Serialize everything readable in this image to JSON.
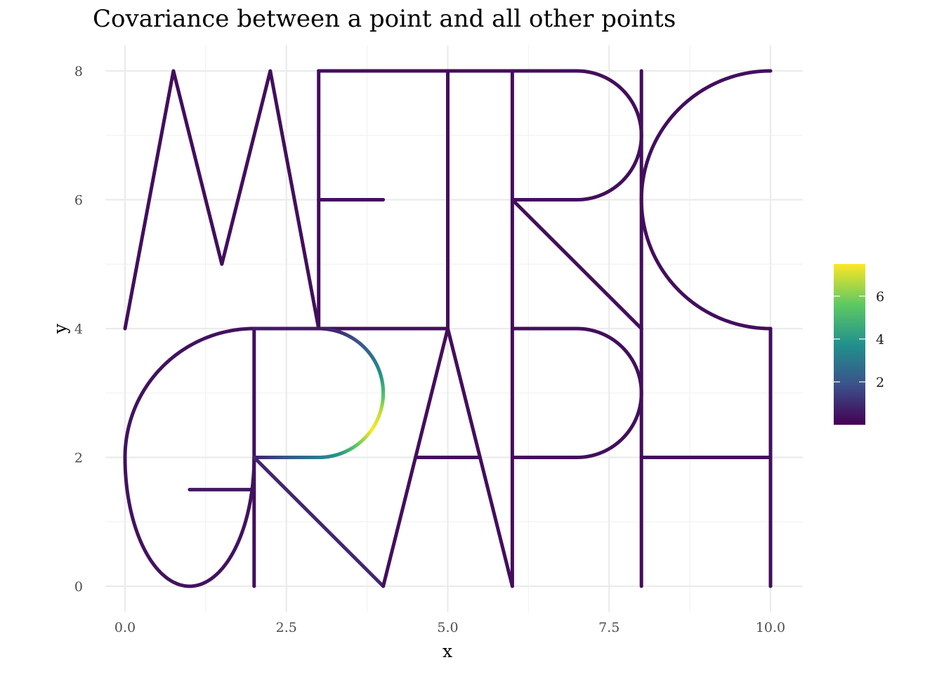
{
  "chart_data": {
    "type": "line",
    "title": "Covariance between a point and all other points",
    "xlabel": "x",
    "ylabel": "y",
    "xlim": [
      -0.3,
      10.5
    ],
    "ylim": [
      -0.4,
      8.4
    ],
    "x_ticks": [
      0,
      2.5,
      5,
      7.5,
      10
    ],
    "x_tick_labels": [
      "0.0",
      "2.5",
      "5.0",
      "7.5",
      "10.0"
    ],
    "y_ticks": [
      0,
      2,
      4,
      6,
      8
    ],
    "y_tick_labels": [
      "0",
      "2",
      "4",
      "6",
      "8"
    ],
    "grid": true,
    "legend": {
      "placement": "right",
      "type": "colorbar",
      "range": [
        0,
        7.5
      ],
      "ticks": [
        2,
        4,
        6
      ],
      "tick_labels": [
        "2",
        "4",
        "6"
      ],
      "colormap": [
        "#440154",
        "#3b528b",
        "#21918c",
        "#5ec962",
        "#fde725"
      ]
    },
    "series": [
      {
        "kind": "polyline",
        "points": [
          [
            0,
            4
          ],
          [
            0.75,
            8
          ],
          [
            1.5,
            5
          ],
          [
            2.25,
            8
          ],
          [
            3,
            4
          ]
        ],
        "value": 0.3
      },
      {
        "kind": "polyline",
        "points": [
          [
            3,
            4
          ],
          [
            3,
            8
          ]
        ],
        "value": 0.3
      },
      {
        "kind": "polyline",
        "points": [
          [
            3,
            8
          ],
          [
            7,
            8
          ]
        ],
        "value": 0.3
      },
      {
        "kind": "polyline",
        "points": [
          [
            3,
            6
          ],
          [
            4,
            6
          ]
        ],
        "value": 0.3
      },
      {
        "kind": "polyline",
        "points": [
          [
            3,
            4
          ],
          [
            5,
            4
          ]
        ],
        "value": 0.35
      },
      {
        "kind": "polyline",
        "points": [
          [
            5,
            4
          ],
          [
            5,
            8
          ]
        ],
        "value": 0.3
      },
      {
        "kind": "polyline",
        "points": [
          [
            6,
            4
          ],
          [
            6,
            8
          ]
        ],
        "value": 0.3
      },
      {
        "kind": "arc",
        "center": [
          7,
          7
        ],
        "radius": 1,
        "from_deg": 90,
        "to_deg": -90,
        "value": 0.3
      },
      {
        "kind": "polyline",
        "points": [
          [
            7,
            6
          ],
          [
            6,
            6
          ]
        ],
        "value": 0.3
      },
      {
        "kind": "polyline",
        "points": [
          [
            6,
            6
          ],
          [
            8,
            4
          ]
        ],
        "value": 0.3
      },
      {
        "kind": "polyline",
        "points": [
          [
            8,
            4
          ],
          [
            8,
            8
          ]
        ],
        "value": 0.3
      },
      {
        "kind": "arc",
        "center": [
          10,
          6
        ],
        "radius": 2,
        "from_deg": 90,
        "to_deg": 270,
        "value": 0.3
      },
      {
        "kind": "polyline",
        "points": [
          [
            2,
            4
          ],
          [
            2,
            0
          ]
        ],
        "value": 0.3
      },
      {
        "kind": "polyline",
        "points": [
          [
            1,
            1.5
          ],
          [
            2,
            1.5
          ]
        ],
        "value": 0.5
      },
      {
        "kind": "ellipse_arc",
        "center": [
          2,
          2
        ],
        "rx": 2,
        "ry": 2,
        "from_deg": 90,
        "to_deg": 180,
        "value": 0.4
      },
      {
        "kind": "ellipse_arc",
        "center": [
          1,
          2
        ],
        "rx": 1,
        "ry": 2,
        "from_deg": 180,
        "to_deg": 360,
        "value": 0.4
      },
      {
        "kind": "polyline",
        "points": [
          [
            2,
            4
          ],
          [
            3,
            4
          ]
        ],
        "value": 0.6
      },
      {
        "kind": "arc_gradient",
        "center": [
          3,
          3
        ],
        "radius": 1,
        "from_deg": 90,
        "to_deg": -90,
        "values": [
          0.5,
          1.0,
          1.8,
          2.6,
          3.6,
          5.0,
          6.8,
          7.5,
          5.8,
          4.0,
          3.2
        ]
      },
      {
        "kind": "line_gradient",
        "points": [
          [
            3,
            2
          ],
          [
            2,
            2
          ]
        ],
        "values": [
          3.2,
          0.8
        ]
      },
      {
        "kind": "polyline",
        "points": [
          [
            2,
            2
          ],
          [
            4,
            0
          ]
        ],
        "value": 0.9
      },
      {
        "kind": "polyline",
        "points": [
          [
            4,
            0
          ],
          [
            5,
            4
          ],
          [
            6,
            0
          ]
        ],
        "value": 0.3
      },
      {
        "kind": "polyline",
        "points": [
          [
            4.5,
            2
          ],
          [
            5.5,
            2
          ]
        ],
        "value": 0.3
      },
      {
        "kind": "polyline",
        "points": [
          [
            6,
            0
          ],
          [
            6,
            4
          ]
        ],
        "value": 0.3
      },
      {
        "kind": "polyline",
        "points": [
          [
            6,
            4
          ],
          [
            7,
            4
          ]
        ],
        "value": 0.3
      },
      {
        "kind": "arc",
        "center": [
          7,
          3
        ],
        "radius": 1,
        "from_deg": 90,
        "to_deg": -90,
        "value": 0.3
      },
      {
        "kind": "polyline",
        "points": [
          [
            7,
            2
          ],
          [
            6,
            2
          ]
        ],
        "value": 0.3
      },
      {
        "kind": "polyline",
        "points": [
          [
            8,
            0
          ],
          [
            8,
            4
          ]
        ],
        "value": 0.3
      },
      {
        "kind": "polyline",
        "points": [
          [
            10,
            0
          ],
          [
            10,
            4
          ]
        ],
        "value": 0.3
      },
      {
        "kind": "polyline",
        "points": [
          [
            8,
            2
          ],
          [
            10,
            2
          ]
        ],
        "value": 0.3
      }
    ]
  }
}
